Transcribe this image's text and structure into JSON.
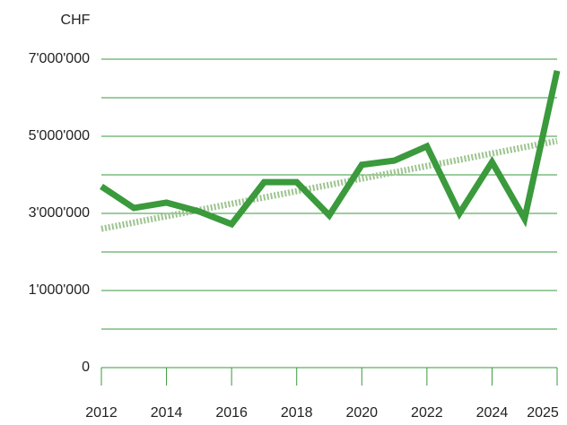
{
  "chart_data": {
    "type": "line",
    "y_label": "CHF",
    "categories": [
      "2012",
      null,
      "2014",
      null,
      "2016",
      null,
      "2018",
      null,
      "2020",
      null,
      "2022",
      null,
      "2024",
      null,
      "2025"
    ],
    "series": [
      {
        "color": "#3a9a3c",
        "values": [
          3700000,
          3140000,
          3280000,
          3050000,
          2720000,
          3810000,
          3810000,
          2950000,
          4260000,
          4370000,
          4740000,
          3000000,
          4330000,
          2860000,
          6700000
        ]
      }
    ],
    "trend": {
      "color": "#9dc48f",
      "values": [
        2600000,
        4880000
      ]
    },
    "ylim": [
      0,
      7000000
    ],
    "yticks": [
      {
        "value": 0,
        "label": "0"
      },
      {
        "value": 1000000,
        "label": "1'000'000"
      },
      {
        "value": 3000000,
        "label": "3'000'000"
      },
      {
        "value": 5000000,
        "label": "5'000'000"
      },
      {
        "value": 7000000,
        "label": "7'000'000"
      }
    ],
    "grid": true
  }
}
